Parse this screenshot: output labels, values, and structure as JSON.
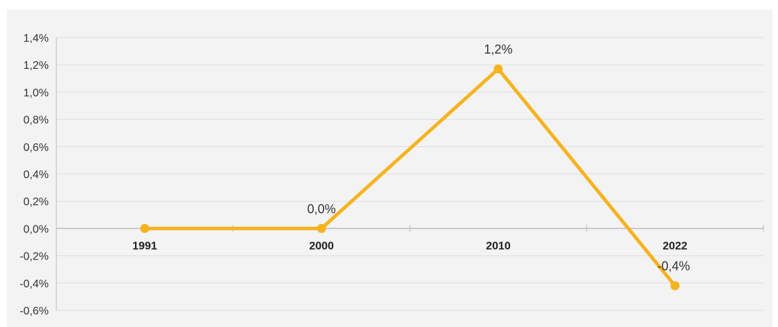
{
  "chart_data": {
    "type": "line",
    "title": "",
    "xlabel": "",
    "ylabel": "",
    "categories": [
      "1991",
      "2000",
      "2010",
      "2022"
    ],
    "series": [
      {
        "values": [
          0.0,
          0.0,
          1.17,
          -0.42
        ],
        "labels": [
          "",
          "0,0%",
          "1,2%",
          "-0,4%"
        ]
      }
    ],
    "y_ticks": [
      "1,4%",
      "1,2%",
      "1,0%",
      "0,8%",
      "0,6%",
      "0,4%",
      "0,2%",
      "0,0%",
      "-0,2%",
      "-0,4%",
      "-0,6%"
    ],
    "ylim": [
      -0.6,
      1.4
    ],
    "grid": true,
    "legend": "none",
    "colors": {
      "line": "#f5b31f",
      "grid": "#dddddd",
      "axis": "#bbbbbb",
      "background": "#f3f3f3"
    }
  }
}
